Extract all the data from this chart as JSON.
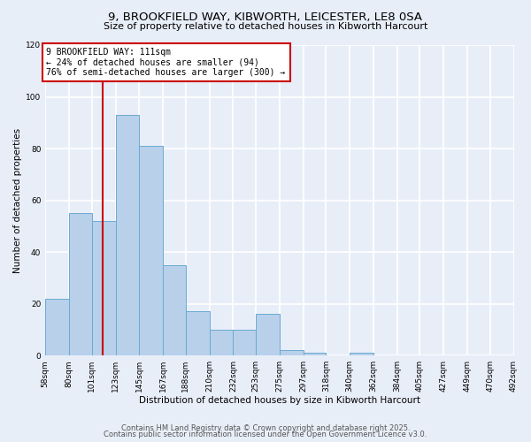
{
  "title_line1": "9, BROOKFIELD WAY, KIBWORTH, LEICESTER, LE8 0SA",
  "title_line2": "Size of property relative to detached houses in Kibworth Harcourt",
  "xlabel": "Distribution of detached houses by size in Kibworth Harcourt",
  "ylabel": "Number of detached properties",
  "bar_edges": [
    58,
    80,
    101,
    123,
    145,
    167,
    188,
    210,
    232,
    253,
    275,
    297,
    318,
    340,
    362,
    384,
    405,
    427,
    449,
    470,
    492
  ],
  "bar_heights": [
    22,
    55,
    52,
    93,
    81,
    35,
    17,
    10,
    10,
    16,
    2,
    1,
    0,
    1,
    0,
    0,
    0,
    0,
    0,
    0
  ],
  "bar_color": "#b8d0ea",
  "bar_edgecolor": "#6aaad4",
  "bg_color": "#e8eef8",
  "grid_color": "#ffffff",
  "vline_x": 111,
  "vline_color": "#cc0000",
  "annotation_title": "9 BROOKFIELD WAY: 111sqm",
  "annotation_line2": "← 24% of detached houses are smaller (94)",
  "annotation_line3": "76% of semi-detached houses are larger (300) →",
  "annotation_box_edgecolor": "#cc0000",
  "annotation_box_facecolor": "#ffffff",
  "ylim": [
    0,
    120
  ],
  "yticks": [
    0,
    20,
    40,
    60,
    80,
    100,
    120
  ],
  "tick_labels": [
    "58sqm",
    "80sqm",
    "101sqm",
    "123sqm",
    "145sqm",
    "167sqm",
    "188sqm",
    "210sqm",
    "232sqm",
    "253sqm",
    "275sqm",
    "297sqm",
    "318sqm",
    "340sqm",
    "362sqm",
    "384sqm",
    "405sqm",
    "427sqm",
    "449sqm",
    "470sqm",
    "492sqm"
  ],
  "footer_line1": "Contains HM Land Registry data © Crown copyright and database right 2025.",
  "footer_line2": "Contains public sector information licensed under the Open Government Licence v3.0.",
  "title_fontsize": 9.5,
  "subtitle_fontsize": 8,
  "axis_label_fontsize": 7.5,
  "tick_fontsize": 6.5,
  "annotation_fontsize": 7,
  "footer_fontsize": 6
}
